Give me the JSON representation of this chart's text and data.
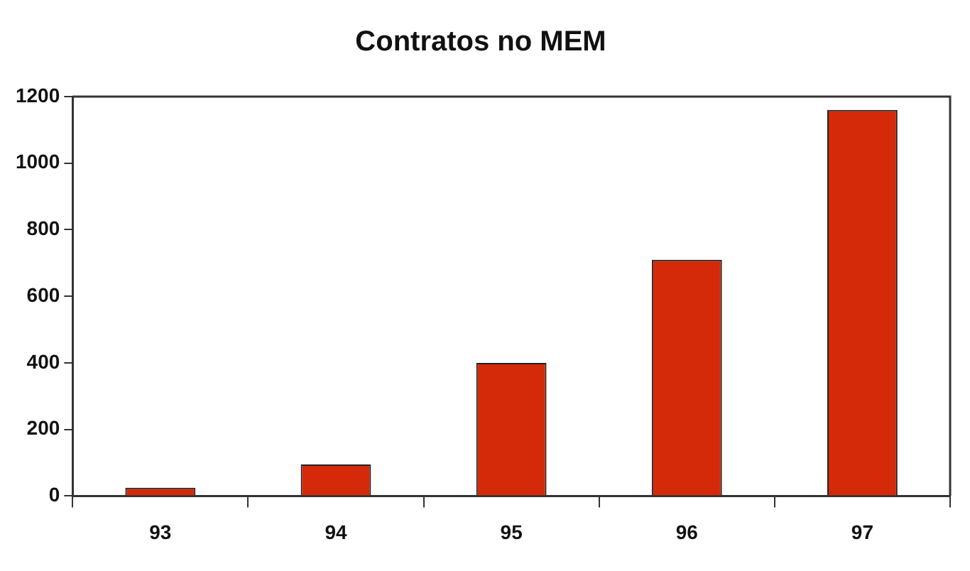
{
  "chart_data": {
    "type": "bar",
    "title": "Contratos no MEM",
    "categories": [
      "93",
      "94",
      "95",
      "96",
      "97"
    ],
    "values": [
      25,
      95,
      400,
      710,
      1160
    ],
    "color": "#d42a0a",
    "ylim": [
      0,
      1200
    ],
    "yticks": [
      0,
      200,
      400,
      600,
      800,
      1000,
      1200
    ],
    "grid": false
  }
}
